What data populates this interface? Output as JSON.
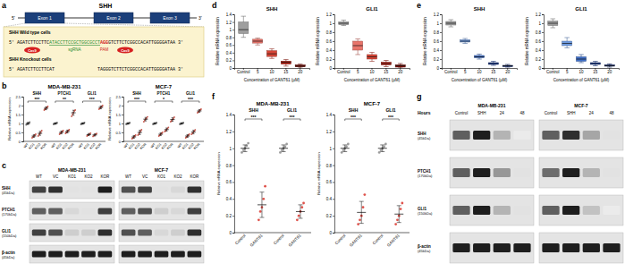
{
  "panel_labels": [
    "a",
    "b",
    "c",
    "d",
    "e",
    "f",
    "g"
  ],
  "gene_diagram": {
    "title": "SHH",
    "five_prime": "5'",
    "three_prime": "3'",
    "exons": [
      "Exon 1",
      "Exon 2",
      "Exon 3"
    ],
    "wild_type": {
      "label": "SHH Wild type cells",
      "prefix": "5' AGATCTTCCTTC",
      "sgrna": "ATACCTTCCGCTGGCGCCT",
      "pam": "AGG",
      "suffix": "GTCTTCTCGGCCACATTGGGGATAA 3'"
    },
    "knockout": {
      "label": "SHH Knockout cells",
      "prefix": "5' AGATCTTCCTTCAT",
      "suffix": "TAGGGTCTTCTCGGCCACATTGGGGATAA 3'"
    },
    "sgrna_label": "sgRNA",
    "pam_label": "PAM",
    "cas9_label": "Cas9"
  },
  "chart_data": [
    {
      "type": "scatter",
      "title": "MDA-MB-231",
      "y_label": "Relative mRNA expression",
      "categories": [
        "WT",
        "KO1",
        "KO2",
        "KOR"
      ],
      "colors": [
        "#555555",
        "#c0392b",
        "#c0392b",
        "#c0392b"
      ],
      "ylim": [
        0,
        2.5
      ],
      "yticks": [
        0,
        0.5,
        1,
        1.5,
        2,
        2.5
      ],
      "series": [
        {
          "name": "SHH",
          "values": [
            [
              0.92,
              0.97,
              1.0,
              1.03,
              1.08
            ],
            [
              0.2,
              0.25,
              0.3,
              0.35,
              0.4
            ],
            [
              0.3,
              0.38,
              0.45,
              0.52,
              0.6
            ],
            [
              1.75,
              1.8,
              1.85,
              1.9,
              1.95
            ]
          ],
          "means": [
            1.0,
            0.3,
            0.45,
            1.85
          ],
          "errors": [
            0.06,
            0.08,
            0.11,
            0.08
          ],
          "significance": "***"
        },
        {
          "name": "PTCH1",
          "values": [
            [
              0.95,
              0.98,
              1.0,
              1.02,
              1.05
            ],
            [
              0.4,
              0.45,
              0.5,
              0.55,
              0.6
            ],
            [
              0.45,
              0.5,
              0.55,
              0.6,
              0.65
            ],
            [
              1.4,
              1.5,
              1.6,
              1.7,
              1.75
            ]
          ],
          "means": [
            1.0,
            0.5,
            0.55,
            1.6
          ],
          "errors": [
            0.04,
            0.08,
            0.08,
            0.14
          ],
          "significance": "**"
        },
        {
          "name": "GLI1",
          "values": [
            [
              0.95,
              0.98,
              1.0,
              1.02,
              1.05
            ],
            [
              0.3,
              0.34,
              0.38,
              0.42,
              0.46
            ],
            [
              0.28,
              0.32,
              0.36,
              0.4,
              0.44
            ],
            [
              1.8,
              1.85,
              1.9,
              1.95,
              2.0
            ]
          ],
          "means": [
            1.0,
            0.38,
            0.36,
            1.9
          ],
          "errors": [
            0.04,
            0.06,
            0.06,
            0.08
          ],
          "significance": "***"
        }
      ]
    },
    {
      "type": "scatter",
      "title": "MCF-7",
      "y_label": "Relative mRNA expression",
      "categories": [
        "WT",
        "KO1",
        "KO2",
        "KOR"
      ],
      "colors": [
        "#555555",
        "#c0392b",
        "#c0392b",
        "#c0392b"
      ],
      "ylim": [
        0,
        2.5
      ],
      "yticks": [
        0,
        0.5,
        1,
        1.5,
        2,
        2.5
      ],
      "series": [
        {
          "name": "SHH",
          "values": [
            [
              0.95,
              0.98,
              1.0,
              1.02,
              1.05
            ],
            [
              0.15,
              0.2,
              0.25,
              0.3,
              0.35
            ],
            [
              0.35,
              0.42,
              0.5,
              0.58,
              0.65
            ],
            [
              1.1,
              1.18,
              1.25,
              1.3,
              1.37
            ]
          ],
          "means": [
            1.0,
            0.25,
            0.5,
            1.24
          ],
          "errors": [
            0.04,
            0.08,
            0.12,
            0.1
          ],
          "significance": "***"
        },
        {
          "name": "PTCH1",
          "values": [
            [
              0.95,
              0.98,
              1.0,
              1.02,
              1.05
            ],
            [
              0.3,
              0.35,
              0.4,
              0.45,
              0.5
            ],
            [
              0.55,
              0.6,
              0.66,
              0.72,
              0.78
            ],
            [
              1.1,
              1.15,
              1.22,
              1.28,
              1.35
            ]
          ],
          "means": [
            1.0,
            0.4,
            0.66,
            1.22
          ],
          "errors": [
            0.04,
            0.08,
            0.09,
            0.1
          ],
          "significance": "*"
        },
        {
          "name": "GLI1",
          "values": [
            [
              0.95,
              0.98,
              1.0,
              1.02,
              1.05
            ],
            [
              0.2,
              0.25,
              0.3,
              0.35,
              0.4
            ],
            [
              0.4,
              0.46,
              0.52,
              0.58,
              0.64
            ],
            [
              1.6,
              1.65,
              1.7,
              1.75,
              1.8
            ]
          ],
          "means": [
            1.0,
            0.3,
            0.52,
            1.7
          ],
          "errors": [
            0.04,
            0.08,
            0.1,
            0.08
          ],
          "significance": "***"
        }
      ]
    },
    {
      "type": "box",
      "title": "SHH",
      "x_label": "Concentration of GANT61 (µM)",
      "y_label": "Relative mRNA expression",
      "categories": [
        "Control",
        "5",
        "10",
        "15",
        "20"
      ],
      "colors": [
        "#9e9e9e",
        "#e8746a",
        "#d64536",
        "#b22418",
        "#7d0f08"
      ],
      "min": [
        0.8,
        0.6,
        0.25,
        0.05,
        0.0
      ],
      "q1": [
        0.9,
        0.65,
        0.3,
        0.1,
        0.03
      ],
      "median": [
        1.0,
        0.7,
        0.37,
        0.15,
        0.05
      ],
      "q3": [
        1.2,
        0.75,
        0.45,
        0.18,
        0.08
      ],
      "max": [
        1.35,
        0.78,
        0.5,
        0.22,
        0.1
      ],
      "ylim": [
        0,
        1.4
      ],
      "yticks": [
        0,
        0.2,
        0.4,
        0.6,
        0.8,
        1,
        1.2,
        1.4
      ]
    },
    {
      "type": "box",
      "title": "GLI1",
      "x_label": "Concentration of GANT61 (µM)",
      "y_label": "Relative mRNA expression",
      "categories": [
        "Control",
        "5",
        "10",
        "15",
        "20"
      ],
      "colors": [
        "#9e9e9e",
        "#e8746a",
        "#d64536",
        "#b22418",
        "#7d0f08"
      ],
      "min": [
        0.95,
        0.3,
        0.15,
        0.03,
        0.0
      ],
      "q1": [
        0.97,
        0.4,
        0.2,
        0.07,
        0.02
      ],
      "median": [
        1.0,
        0.5,
        0.25,
        0.1,
        0.05
      ],
      "q3": [
        1.03,
        0.6,
        0.3,
        0.13,
        0.07
      ],
      "max": [
        1.07,
        0.65,
        0.35,
        0.17,
        0.1
      ],
      "ylim": [
        0,
        1.2
      ],
      "yticks": [
        0,
        0.2,
        0.4,
        0.6,
        0.8,
        1,
        1.2
      ]
    },
    {
      "type": "box",
      "title": "SHH",
      "x_label": "Concentration of GANT61 (µM)",
      "y_label": "Relative mRNA expression",
      "categories": [
        "Control",
        "5",
        "10",
        "15",
        "20"
      ],
      "colors": [
        "#9e9e9e",
        "#6f9be0",
        "#3f6fc8",
        "#22459e",
        "#122a6e"
      ],
      "min": [
        0.92,
        0.55,
        0.2,
        0.06,
        0.02
      ],
      "q1": [
        0.96,
        0.58,
        0.23,
        0.08,
        0.03
      ],
      "median": [
        1.0,
        0.6,
        0.25,
        0.1,
        0.05
      ],
      "q3": [
        1.04,
        0.63,
        0.28,
        0.12,
        0.06
      ],
      "max": [
        1.08,
        0.66,
        0.31,
        0.15,
        0.08
      ],
      "ylim": [
        0,
        1.2
      ],
      "yticks": [
        0,
        0.2,
        0.4,
        0.6,
        0.8,
        1,
        1.2
      ]
    },
    {
      "type": "box",
      "title": "GLI1",
      "x_label": "Concentration of GANT61 (µM)",
      "y_label": "Relative mRNA expression",
      "categories": [
        "Control",
        "5",
        "10",
        "15",
        "20"
      ],
      "colors": [
        "#9e9e9e",
        "#6f9be0",
        "#3f6fc8",
        "#22459e",
        "#122a6e"
      ],
      "min": [
        0.9,
        0.45,
        0.12,
        0.05,
        0.02
      ],
      "q1": [
        0.95,
        0.5,
        0.15,
        0.08,
        0.04
      ],
      "median": [
        1.0,
        0.55,
        0.2,
        0.1,
        0.05
      ],
      "q3": [
        1.05,
        0.6,
        0.25,
        0.12,
        0.07
      ],
      "max": [
        1.1,
        0.68,
        0.3,
        0.15,
        0.09
      ],
      "ylim": [
        0,
        1.2
      ],
      "yticks": [
        0,
        0.2,
        0.4,
        0.6,
        0.8,
        1,
        1.2
      ]
    },
    {
      "type": "scatter",
      "title": "MDA-MB-231",
      "y_label": "Relative mRNA expression",
      "categories": [
        "Control",
        "GANT61"
      ],
      "colors": [
        "#8c8c8c",
        "#d9342b"
      ],
      "ylim": [
        0,
        1.4
      ],
      "yticks": [
        0,
        0.2,
        0.4,
        0.6,
        0.8,
        1,
        1.2,
        1.4
      ],
      "series": [
        {
          "name": "SHH",
          "values": [
            [
              0.95,
              0.98,
              1.0,
              1.03,
              1.06
            ],
            [
              0.15,
              0.25,
              0.3,
              0.4,
              0.55
            ]
          ],
          "means": [
            1.0,
            0.33
          ],
          "errors": [
            0.04,
            0.15
          ],
          "significance": "***"
        },
        {
          "name": "GLI1",
          "values": [
            [
              0.95,
              0.98,
              1.0,
              1.02,
              1.05
            ],
            [
              0.15,
              0.2,
              0.25,
              0.3,
              0.35
            ]
          ],
          "means": [
            1.0,
            0.25
          ],
          "errors": [
            0.04,
            0.08
          ],
          "significance": "***"
        }
      ]
    },
    {
      "type": "scatter",
      "title": "MCF-7",
      "y_label": "Relative mRNA expression",
      "categories": [
        "Control",
        "GANT61"
      ],
      "colors": [
        "#8c8c8c",
        "#d9342b"
      ],
      "ylim": [
        0,
        1.4
      ],
      "yticks": [
        0,
        0.2,
        0.4,
        0.6,
        0.8,
        1,
        1.2,
        1.4
      ],
      "series": [
        {
          "name": "SHH",
          "values": [
            [
              0.95,
              0.98,
              1.0,
              1.02,
              1.05
            ],
            [
              0.1,
              0.15,
              0.2,
              0.3,
              0.45
            ]
          ],
          "means": [
            1.0,
            0.24
          ],
          "errors": [
            0.04,
            0.13
          ],
          "significance": "***"
        },
        {
          "name": "GLI1",
          "values": [
            [
              0.95,
              0.98,
              1.0,
              1.02,
              1.05
            ],
            [
              0.1,
              0.15,
              0.2,
              0.28,
              0.35
            ]
          ],
          "means": [
            1.0,
            0.22
          ],
          "errors": [
            0.04,
            0.1
          ],
          "significance": "***"
        }
      ]
    }
  ],
  "blot_panels": [
    {
      "rows": [
        {
          "protein": "SHH",
          "size": "(45kDa)"
        },
        {
          "protein": "PTCH1",
          "size": "(170kDa)"
        },
        {
          "protein": "GLI1",
          "size": "(150kDa)"
        },
        {
          "protein": "β-actin",
          "size": "(45kDa)"
        }
      ],
      "blots": [
        {
          "title": "MDA-MB-231",
          "lanes": [
            "WT",
            "VC",
            "KO1",
            "KO2",
            "KOR"
          ],
          "intensity": [
            [
              0.8,
              0.85,
              0.2,
              0.2,
              0.9
            ],
            [
              0.7,
              0.7,
              0.25,
              0.2,
              0.8
            ],
            [
              0.8,
              0.75,
              0.3,
              0.3,
              0.85
            ],
            [
              0.9,
              0.9,
              0.9,
              0.9,
              0.9
            ]
          ]
        },
        {
          "title": "MCF-7",
          "lanes": [
            "WT",
            "VC",
            "KO1",
            "KO2",
            "KOR"
          ],
          "intensity": [
            [
              0.75,
              0.8,
              0.2,
              0.25,
              0.85
            ],
            [
              0.7,
              0.75,
              0.3,
              0.25,
              0.8
            ],
            [
              0.75,
              0.7,
              0.25,
              0.3,
              0.85
            ],
            [
              0.9,
              0.9,
              0.9,
              0.9,
              0.9
            ]
          ]
        }
      ]
    },
    {
      "header": "Hours",
      "rows": [
        {
          "protein": "SHH",
          "size": "(45kDa)"
        },
        {
          "protein": "PTCH1",
          "size": "(170kDa)"
        },
        {
          "protein": "GLI1",
          "size": "(150kDa)"
        },
        {
          "protein": "β-actin",
          "size": "(45kDa)"
        }
      ],
      "blots": [
        {
          "title": "MDA-MB-231",
          "lanes": [
            "Control",
            "SHH",
            "24",
            "48"
          ],
          "intensity": [
            [
              0.7,
              0.9,
              0.4,
              0.15
            ],
            [
              0.7,
              0.9,
              0.5,
              0.2
            ],
            [
              0.7,
              0.9,
              0.4,
              0.2
            ],
            [
              0.9,
              0.9,
              0.9,
              0.9
            ]
          ]
        },
        {
          "title": "MCF-7",
          "lanes": [
            "Control",
            "SHH",
            "24",
            "48"
          ],
          "intensity": [
            [
              0.7,
              0.85,
              0.45,
              0.2
            ],
            [
              0.65,
              0.9,
              0.4,
              0.2
            ],
            [
              0.7,
              0.9,
              0.35,
              0.15
            ],
            [
              0.9,
              0.9,
              0.9,
              0.9
            ]
          ]
        }
      ]
    }
  ]
}
